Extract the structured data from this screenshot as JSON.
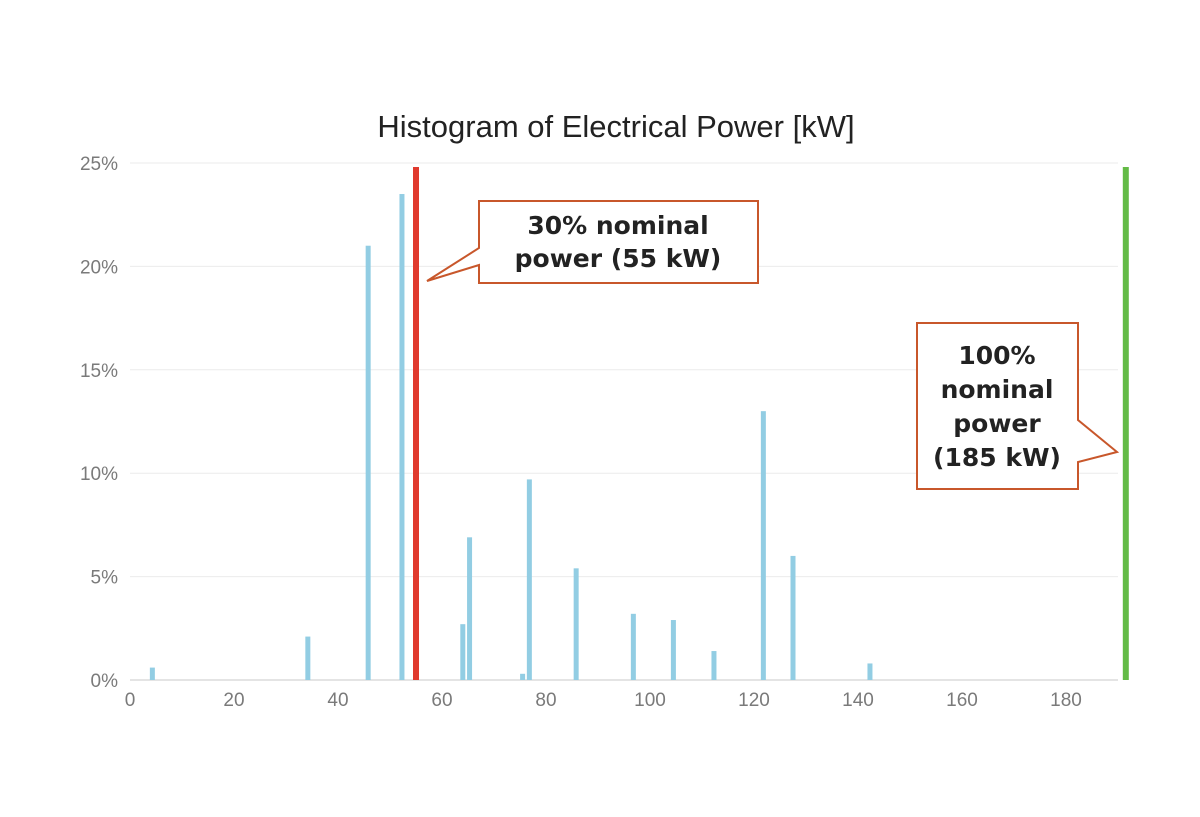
{
  "chart_data": {
    "type": "bar",
    "title": "Histogram of Electrical Power [kW]",
    "xlabel": "",
    "ylabel": "",
    "xlim": [
      0,
      190
    ],
    "ylim": [
      0,
      25
    ],
    "x_ticks": [
      "0",
      "20",
      "40",
      "60",
      "80",
      "100",
      "120",
      "140",
      "160",
      "180"
    ],
    "x_tick_values": [
      0,
      20,
      40,
      60,
      80,
      100,
      120,
      140,
      160,
      180
    ],
    "y_ticks": [
      "0%",
      "5%",
      "10%",
      "15%",
      "20%",
      "25%"
    ],
    "y_tick_values": [
      0,
      5,
      10,
      15,
      20,
      25
    ],
    "grid": true,
    "bar_color": "#92cde3",
    "series": [
      {
        "x": [
          4.3,
          34.2,
          45.8,
          52.3,
          64,
          65.3,
          75.5,
          76.8,
          85.8,
          96.8,
          104.5,
          112.3,
          121.8,
          127.5,
          142.3
        ],
        "values": [
          0.6,
          2.1,
          21.0,
          23.5,
          2.7,
          6.9,
          0.3,
          9.7,
          5.4,
          3.2,
          2.9,
          1.4,
          13.0,
          6.0,
          0.8
        ]
      }
    ],
    "reference_lines": [
      {
        "x": 55,
        "color": "#e03a2e",
        "label_lines": [
          "30% nominal",
          "power (55 kW)"
        ]
      },
      {
        "x": 191.5,
        "color": "#63bb46",
        "label_lines": [
          "100%",
          "nominal",
          "power",
          "(185 kW)"
        ]
      }
    ],
    "callout_border_color": "#c8572b"
  }
}
